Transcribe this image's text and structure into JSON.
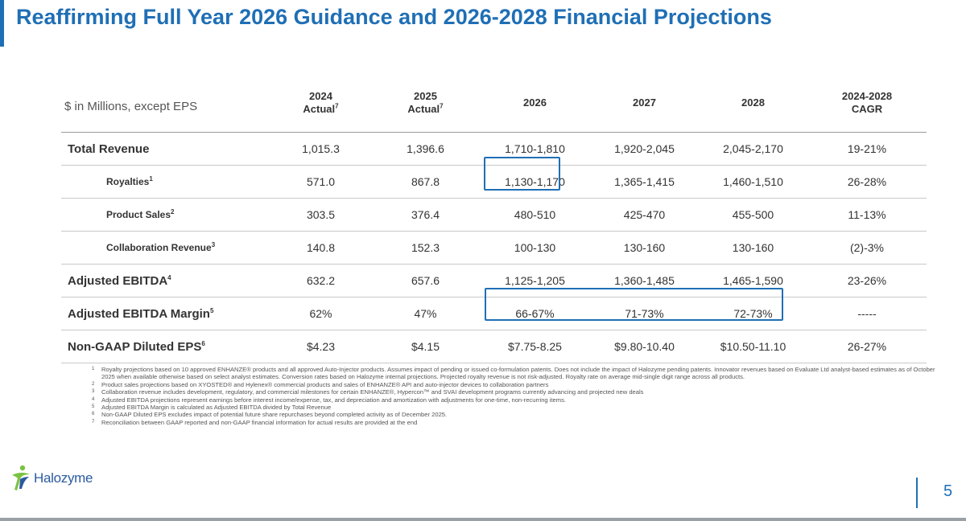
{
  "title": "Reaffirming Full Year 2026 Guidance and 2026-2028 Financial Projections",
  "table": {
    "unit_label": "$ in Millions, except EPS",
    "headers": [
      {
        "line1": "2024",
        "line2": "Actual",
        "sup": "7"
      },
      {
        "line1": "2025",
        "line2": "Actual",
        "sup": "7"
      },
      {
        "line1": "2026",
        "line2": "",
        "sup": ""
      },
      {
        "line1": "2027",
        "line2": "",
        "sup": ""
      },
      {
        "line1": "2028",
        "line2": "",
        "sup": ""
      },
      {
        "line1": "2024-2028",
        "line2": "CAGR",
        "sup": ""
      }
    ],
    "rows": [
      {
        "label": "Total Revenue",
        "sup": "",
        "values": [
          "1,015.3",
          "1,396.6",
          "1,710-1,810",
          "1,920-2,045",
          "2,045-2,170",
          "19-21%"
        ]
      },
      {
        "label": "Royalties",
        "sup": "1",
        "values": [
          "571.0",
          "867.8",
          "1,130-1,170",
          "1,365-1,415",
          "1,460-1,510",
          "26-28%"
        ]
      },
      {
        "label": "Product Sales",
        "sup": "2",
        "values": [
          "303.5",
          "376.4",
          "480-510",
          "425-470",
          "455-500",
          "11-13%"
        ]
      },
      {
        "label": "Collaboration Revenue",
        "sup": "3",
        "values": [
          "140.8",
          "152.3",
          "100-130",
          "130-160",
          "130-160",
          "(2)-3%"
        ]
      },
      {
        "label": "Adjusted EBITDA",
        "sup": "4",
        "values": [
          "632.2",
          "657.6",
          "1,125-1,205",
          "1,360-1,485",
          "1,465-1,590",
          "23-26%"
        ]
      },
      {
        "label": "Adjusted EBITDA Margin",
        "sup": "5",
        "values": [
          "62%",
          "47%",
          "66-67%",
          "71-73%",
          "72-73%",
          "-----"
        ]
      },
      {
        "label": "Non-GAAP Diluted EPS",
        "sup": "6",
        "values": [
          "$4.23",
          "$4.15",
          "$7.75-8.25",
          "$9.80-10.40",
          "$10.50-11.10",
          "26-27%"
        ]
      }
    ]
  },
  "footnotes": [
    {
      "num": "1",
      "text": "Royalty projections based on 10 approved ENHANZE® products and all approved Auto-Injector products. Assumes impact of pending or issued co-formulation patents. Does not include the impact of Halozyme pending patents. Innovator revenues based on Evaluate Ltd analyst-based estimates as of October 2025 when available otherwise based on select analyst estimates. Conversion rates based on Halozyme internal projections. Projected royalty revenue is not risk-adjusted. Royalty rate on average mid-single digit range across all products."
    },
    {
      "num": "2",
      "text": "Product sales projections based on XYOSTED® and Hylenex® commercial products and sales of ENHANZE® API and auto-injector devices to collaboration partners"
    },
    {
      "num": "3",
      "text": "Collaboration revenue includes development, regulatory, and commercial milestones for certain ENHANZE®, Hypercon™ and SVAI development programs currently advancing and projected new deals"
    },
    {
      "num": "4",
      "text": "Adjusted EBITDA projections represent earnings before interest income/expense, tax, and depreciation and amortization with adjustments for one-time, non-recurring items."
    },
    {
      "num": "5",
      "text": "Adjusted EBITDA Margin is calculated as Adjusted EBITDA divided by Total Revenue"
    },
    {
      "num": "6",
      "text": "Non-GAAP Diluted EPS excludes impact of potential future share repurchases beyond completed activity as of December 2025."
    },
    {
      "num": "7",
      "text": "Reconciliation between GAAP reported and non-GAAP financial information for actual results are provided at the end"
    }
  ],
  "logo": {
    "text": "Halozyme",
    "icon": "halozyme-figure-logo"
  },
  "page_number": "5",
  "colors": {
    "accent": "#1f6fb5",
    "logo_green": "#7cc242",
    "logo_blue": "#2a5aa0"
  }
}
